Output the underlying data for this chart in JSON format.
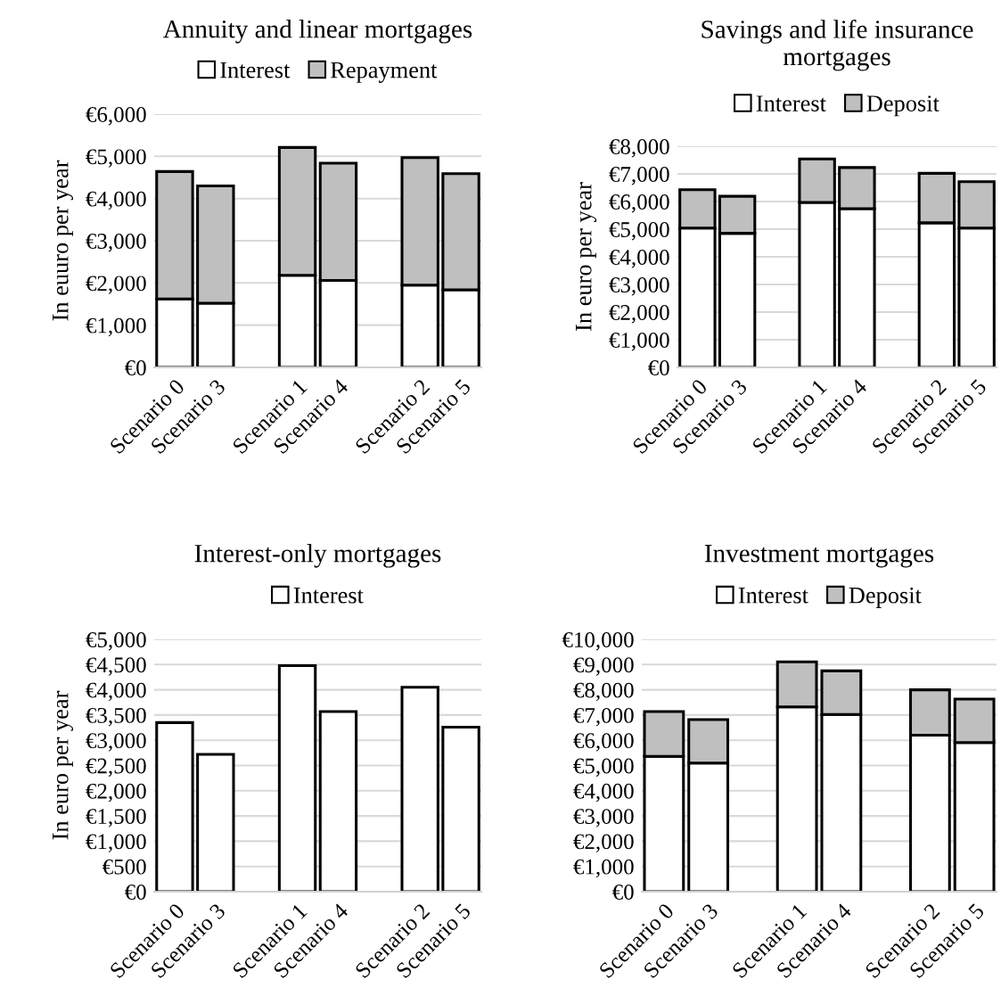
{
  "chart_data": [
    {
      "type": "bar",
      "title": "Annuity and linear mortgages",
      "ylabel": "In euuro per year",
      "stacked": true,
      "grid": "y",
      "legend": "top",
      "categories": [
        "Scenario 0",
        "Scenario 3",
        null,
        "Scenario 1",
        "Scenario 4",
        null,
        "Scenario 2",
        "Scenario 5"
      ],
      "series": [
        {
          "name": "Interest",
          "color": "#ffffff",
          "values": [
            1620,
            1520,
            null,
            2180,
            2060,
            null,
            1950,
            1840
          ]
        },
        {
          "name": "Repayment",
          "color": "#bfbfbf",
          "values": [
            3020,
            2780,
            null,
            3030,
            2780,
            null,
            3020,
            2750
          ]
        }
      ],
      "ylim": [
        0,
        6000
      ],
      "yticks": [
        {
          "value": 0,
          "label": "€0"
        },
        {
          "value": 1000,
          "label": "€1,000"
        },
        {
          "value": 2000,
          "label": "€2,000"
        },
        {
          "value": 3000,
          "label": "€3,000"
        },
        {
          "value": 4000,
          "label": "€4,000"
        },
        {
          "value": 5000,
          "label": "€5,000"
        },
        {
          "value": 6000,
          "label": "€6,000"
        }
      ]
    },
    {
      "type": "bar",
      "title": "Savings and life insurance mortgages",
      "ylabel": "In euro per year",
      "stacked": true,
      "grid": "y",
      "legend": "top",
      "categories": [
        "Scenario 0",
        "Scenario 3",
        null,
        "Scenario 1",
        "Scenario 4",
        null,
        "Scenario 2",
        "Scenario 5"
      ],
      "series": [
        {
          "name": "Interest",
          "color": "#ffffff",
          "values": [
            5040,
            4850,
            null,
            5970,
            5740,
            null,
            5230,
            5040
          ]
        },
        {
          "name": "Deposit",
          "color": "#bfbfbf",
          "values": [
            1390,
            1340,
            null,
            1570,
            1490,
            null,
            1790,
            1680
          ]
        }
      ],
      "ylim": [
        0,
        8000
      ],
      "yticks": [
        {
          "value": 0,
          "label": "€0"
        },
        {
          "value": 1000,
          "label": "€1,000"
        },
        {
          "value": 2000,
          "label": "€2,000"
        },
        {
          "value": 3000,
          "label": "€3,000"
        },
        {
          "value": 4000,
          "label": "€4,000"
        },
        {
          "value": 5000,
          "label": "€5,000"
        },
        {
          "value": 6000,
          "label": "€6,000"
        },
        {
          "value": 7000,
          "label": "€7,000"
        },
        {
          "value": 8000,
          "label": "€8,000"
        }
      ]
    },
    {
      "type": "bar",
      "title": "Interest-only mortgages",
      "ylabel": "In euro per year",
      "stacked": true,
      "grid": "y",
      "legend": "top",
      "categories": [
        "Scenario 0",
        "Scenario 3",
        null,
        "Scenario 1",
        "Scenario 4",
        null,
        "Scenario 2",
        "Scenario 5"
      ],
      "series": [
        {
          "name": "Interest",
          "color": "#ffffff",
          "values": [
            3350,
            2720,
            null,
            4480,
            3570,
            null,
            4050,
            3260
          ]
        }
      ],
      "ylim": [
        0,
        5000
      ],
      "yticks": [
        {
          "value": 0,
          "label": "€0"
        },
        {
          "value": 500,
          "label": "€500"
        },
        {
          "value": 1000,
          "label": "€1,000"
        },
        {
          "value": 1500,
          "label": "€1,500"
        },
        {
          "value": 2000,
          "label": "€2,000"
        },
        {
          "value": 2500,
          "label": "€2,500"
        },
        {
          "value": 3000,
          "label": "€3,000"
        },
        {
          "value": 3500,
          "label": "€3,500"
        },
        {
          "value": 4000,
          "label": "€4,000"
        },
        {
          "value": 4500,
          "label": "€4,500"
        },
        {
          "value": 5000,
          "label": "€5,000"
        }
      ]
    },
    {
      "type": "bar",
      "title": "Investment mortgages",
      "stacked": true,
      "grid": "y",
      "legend": "top",
      "categories": [
        "Scenario 0",
        "Scenario 3",
        null,
        "Scenario 1",
        "Scenario 4",
        null,
        "Scenario 2",
        "Scenario 5"
      ],
      "series": [
        {
          "name": "Interest",
          "color": "#ffffff",
          "values": [
            5360,
            5100,
            null,
            7320,
            7020,
            null,
            6200,
            5910
          ]
        },
        {
          "name": "Deposit",
          "color": "#bfbfbf",
          "values": [
            1780,
            1720,
            null,
            1790,
            1730,
            null,
            1800,
            1720
          ]
        }
      ],
      "ylim": [
        0,
        10000
      ],
      "yticks": [
        {
          "value": 0,
          "label": "€0"
        },
        {
          "value": 1000,
          "label": "€1,000"
        },
        {
          "value": 2000,
          "label": "€2,000"
        },
        {
          "value": 3000,
          "label": "€3,000"
        },
        {
          "value": 4000,
          "label": "€4,000"
        },
        {
          "value": 5000,
          "label": "€5,000"
        },
        {
          "value": 6000,
          "label": "€6,000"
        },
        {
          "value": 7000,
          "label": "€7,000"
        },
        {
          "value": 8000,
          "label": "€8,000"
        },
        {
          "value": 9000,
          "label": "€9,000"
        },
        {
          "value": 10000,
          "label": "€10,000"
        }
      ]
    }
  ]
}
